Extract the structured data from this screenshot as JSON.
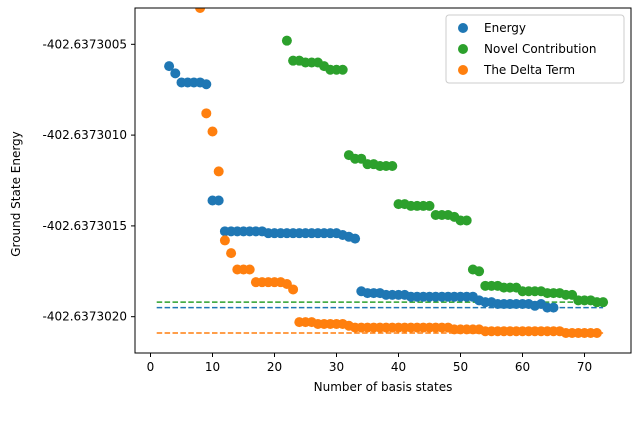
{
  "chart_data": {
    "type": "scatter",
    "xlabel": "Number of basis states",
    "ylabel": "Ground State Energy",
    "xlim": [
      -2.5,
      77.5
    ],
    "ylim": [
      -402.6373022,
      -402.6373003
    ],
    "xticks": [
      0,
      10,
      20,
      30,
      40,
      50,
      60,
      70
    ],
    "xtick_labels": [
      "0",
      "10",
      "20",
      "30",
      "40",
      "50",
      "60",
      "70"
    ],
    "yticks": [
      -402.6373005,
      -402.637301,
      -402.6373015,
      -402.637302
    ],
    "ytick_labels": [
      "-402.6373005",
      "-402.6373010",
      "-402.6373015",
      "-402.6373020"
    ],
    "grid": false,
    "legend_position": "top-right",
    "series": [
      {
        "name": "Energy",
        "color": "#1f77b4",
        "x": [
          3,
          4,
          5,
          6,
          7,
          8,
          9,
          10,
          11,
          12,
          13,
          14,
          15,
          16,
          17,
          18,
          19,
          20,
          21,
          22,
          23,
          24,
          25,
          26,
          27,
          28,
          29,
          30,
          31,
          32,
          33,
          34,
          35,
          36,
          37,
          38,
          39,
          40,
          41,
          42,
          43,
          44,
          45,
          46,
          47,
          48,
          49,
          50,
          51,
          52,
          53,
          54,
          55,
          56,
          57,
          58,
          59,
          60,
          61,
          62,
          63,
          64,
          65
        ],
        "y": [
          -402.63730062,
          -402.63730066,
          -402.63730071,
          -402.63730071,
          -402.63730071,
          -402.63730071,
          -402.63730072,
          -402.63730136,
          -402.63730136,
          -402.63730153,
          -402.63730153,
          -402.63730153,
          -402.63730153,
          -402.63730153,
          -402.63730153,
          -402.63730153,
          -402.63730154,
          -402.63730154,
          -402.63730154,
          -402.63730154,
          -402.63730154,
          -402.63730154,
          -402.63730154,
          -402.63730154,
          -402.63730154,
          -402.63730154,
          -402.63730154,
          -402.63730154,
          -402.63730155,
          -402.63730156,
          -402.63730157,
          -402.63730186,
          -402.63730187,
          -402.63730187,
          -402.63730187,
          -402.63730188,
          -402.63730188,
          -402.63730188,
          -402.63730188,
          -402.63730189,
          -402.63730189,
          -402.63730189,
          -402.63730189,
          -402.63730189,
          -402.63730189,
          -402.63730189,
          -402.63730189,
          -402.63730189,
          -402.63730189,
          -402.63730189,
          -402.63730191,
          -402.63730192,
          -402.63730192,
          -402.63730193,
          -402.63730193,
          -402.63730193,
          -402.63730193,
          -402.63730193,
          -402.63730193,
          -402.63730194,
          -402.63730193,
          -402.63730195,
          -402.63730195
        ],
        "reference_line": -402.63730195
      },
      {
        "name": "Novel Contribution",
        "color": "#2ca02c",
        "x": [
          22,
          23,
          24,
          25,
          26,
          27,
          28,
          29,
          30,
          31,
          32,
          33,
          34,
          35,
          36,
          37,
          38,
          39,
          40,
          41,
          42,
          43,
          44,
          45,
          46,
          47,
          48,
          49,
          50,
          51,
          52,
          53,
          54,
          55,
          56,
          57,
          58,
          59,
          60,
          61,
          62,
          63,
          64,
          65,
          66,
          67,
          68,
          69,
          70,
          71,
          72,
          73
        ],
        "y": [
          -402.63730048,
          -402.63730059,
          -402.63730059,
          -402.6373006,
          -402.6373006,
          -402.6373006,
          -402.63730062,
          -402.63730064,
          -402.63730064,
          -402.63730064,
          -402.63730111,
          -402.63730113,
          -402.63730113,
          -402.63730116,
          -402.63730116,
          -402.63730117,
          -402.63730117,
          -402.63730117,
          -402.63730138,
          -402.63730138,
          -402.63730139,
          -402.63730139,
          -402.63730139,
          -402.63730139,
          -402.63730144,
          -402.63730144,
          -402.63730144,
          -402.63730145,
          -402.63730147,
          -402.63730147,
          -402.63730174,
          -402.63730175,
          -402.63730183,
          -402.63730183,
          -402.63730183,
          -402.63730184,
          -402.63730184,
          -402.63730184,
          -402.63730186,
          -402.63730186,
          -402.63730186,
          -402.63730186,
          -402.63730187,
          -402.63730187,
          -402.63730187,
          -402.63730188,
          -402.63730188,
          -402.63730191,
          -402.63730191,
          -402.63730191,
          -402.63730192,
          -402.63730192
        ],
        "reference_line": -402.63730192
      },
      {
        "name": "The Delta Term",
        "color": "#ff7f0e",
        "x": [
          8,
          9,
          10,
          11,
          12,
          13,
          14,
          15,
          16,
          17,
          18,
          19,
          20,
          21,
          22,
          23,
          24,
          25,
          26,
          27,
          28,
          29,
          30,
          31,
          32,
          33,
          34,
          35,
          36,
          37,
          38,
          39,
          40,
          41,
          42,
          43,
          44,
          45,
          46,
          47,
          48,
          49,
          50,
          51,
          52,
          53,
          54,
          55,
          56,
          57,
          58,
          59,
          60,
          61,
          62,
          63,
          64,
          65,
          66,
          67,
          68,
          69,
          70,
          71,
          72
        ],
        "y": [
          -402.6373003,
          -402.63730088,
          -402.63730098,
          -402.6373012,
          -402.63730158,
          -402.63730165,
          -402.63730174,
          -402.63730174,
          -402.63730174,
          -402.63730181,
          -402.63730181,
          -402.63730181,
          -402.63730181,
          -402.63730181,
          -402.63730182,
          -402.63730185,
          -402.63730203,
          -402.63730203,
          -402.63730203,
          -402.63730204,
          -402.63730204,
          -402.63730204,
          -402.63730204,
          -402.63730204,
          -402.63730205,
          -402.63730206,
          -402.63730206,
          -402.63730206,
          -402.63730206,
          -402.63730206,
          -402.63730206,
          -402.63730206,
          -402.63730206,
          -402.63730206,
          -402.63730206,
          -402.63730206,
          -402.63730206,
          -402.63730206,
          -402.63730206,
          -402.63730206,
          -402.63730206,
          -402.63730207,
          -402.63730207,
          -402.63730207,
          -402.63730207,
          -402.63730207,
          -402.63730208,
          -402.63730208,
          -402.63730208,
          -402.63730208,
          -402.63730208,
          -402.63730208,
          -402.63730208,
          -402.63730208,
          -402.63730208,
          -402.63730208,
          -402.63730208,
          -402.63730208,
          -402.63730208,
          -402.63730209,
          -402.63730209,
          -402.63730209,
          -402.63730209,
          -402.63730209,
          -402.63730209
        ],
        "reference_line": -402.63730209
      }
    ],
    "reference_lines": {
      "x_start": 1,
      "x_end": 73,
      "style": "dashed"
    }
  }
}
